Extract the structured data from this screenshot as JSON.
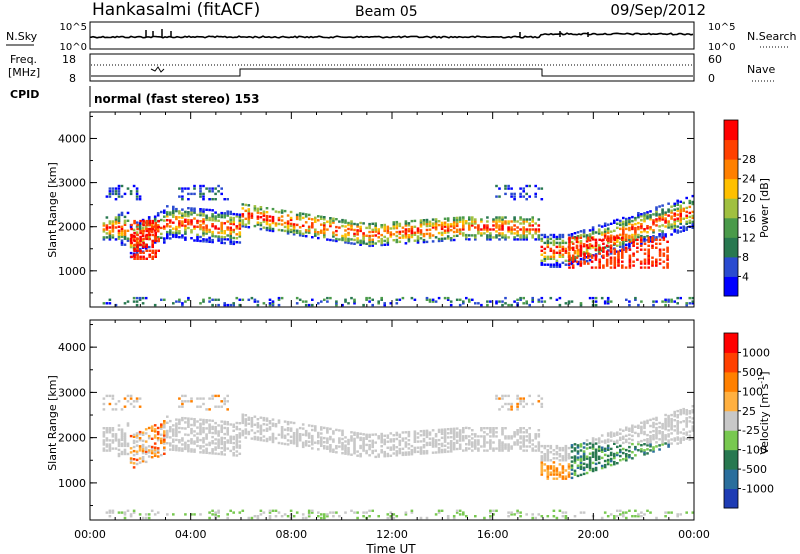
{
  "header": {
    "station": "Hankasalmi (fitACF)",
    "beam": "Beam 05",
    "date": "09/Sep/2012"
  },
  "status_panels": {
    "nsky_label": "N.Sky",
    "nsky_ticks": [
      "10^5",
      "10^0"
    ],
    "nsearch_label": "N.Search",
    "nsearch_ticks": [
      "10^5",
      "10^0"
    ],
    "freq_label_1": "Freq.",
    "freq_label_2": "[MHz]",
    "freq_ticks": [
      "18",
      "8"
    ],
    "nave_label": "Nave",
    "nave_ticks": [
      "60",
      "0"
    ],
    "cpid_label": "CPID",
    "cpid_text": "normal (fast stereo) 153"
  },
  "chart_data": [
    {
      "type": "heatmap",
      "name": "power",
      "ylabel": "Slant Range [km]",
      "xlabel": "",
      "x_ticks": [
        "00:00",
        "04:00",
        "08:00",
        "12:00",
        "16:00",
        "20:00",
        "00:00"
      ],
      "y_ticks": [
        1000,
        2000,
        3000,
        4000
      ],
      "xlim": [
        0,
        24
      ],
      "ylim": [
        180,
        4600
      ],
      "colorbar": {
        "label": "Power [dB]",
        "ticks": [
          4,
          8,
          12,
          16,
          20,
          24,
          28
        ],
        "colors": [
          "#0000ff",
          "#2a4bd0",
          "#287850",
          "#4a9a4a",
          "#a0c040",
          "#ffc000",
          "#ff8000",
          "#ff4000",
          "#ff0000"
        ]
      }
    },
    {
      "type": "heatmap",
      "name": "velocity",
      "ylabel": "Slant Range [km]",
      "xlabel": "Time UT",
      "x_ticks": [
        "00:00",
        "04:00",
        "08:00",
        "12:00",
        "16:00",
        "20:00",
        "00:00"
      ],
      "y_ticks": [
        1000,
        2000,
        3000,
        4000
      ],
      "xlim": [
        0,
        24
      ],
      "ylim": [
        180,
        4600
      ],
      "colorbar": {
        "label": "Velocity [m s",
        "label_sup": "-1",
        "label_end": "]",
        "ticks": [
          "1000",
          "500",
          "100",
          "25",
          "-25",
          "-100",
          "-500",
          "-1000"
        ],
        "colors": [
          "#1e3cb4",
          "#2a6e9c",
          "#287850",
          "#78c850",
          "#c8c8c8",
          "#ffb040",
          "#ff8000",
          "#ff4000",
          "#ff0000"
        ]
      }
    }
  ]
}
